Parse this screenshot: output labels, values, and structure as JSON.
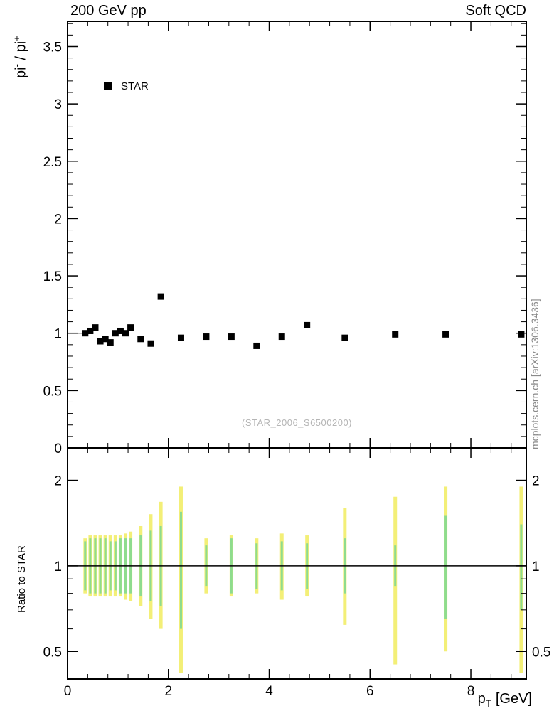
{
  "titles": {
    "top_left": "200 GeV pp",
    "top_right": "Soft QCD",
    "watermark": "(STAR_2006_S6500200)",
    "side_note": "mcplots.cern.ch [arXiv:1306.3436]"
  },
  "legend": {
    "label": "STAR",
    "marker": "filled-square",
    "marker_color": "#000000"
  },
  "axes": {
    "x": {
      "label_main": "p",
      "label_sub": "T",
      "label_rest": " [GeV]",
      "min": 0,
      "max": 9.1,
      "major_ticks": [
        0,
        2,
        4,
        6,
        8
      ],
      "major_labels": [
        "0",
        "2",
        "4",
        "6",
        "8"
      ],
      "minor_step": 0.4
    },
    "y_top": {
      "label_p1": "pi",
      "label_sup1": "-",
      "label_p2": " / pi",
      "label_sup2": "+",
      "min": 0,
      "max": 3.72,
      "major_ticks": [
        0,
        0.5,
        1,
        1.5,
        2,
        2.5,
        3,
        3.5
      ],
      "major_labels": [
        "0",
        "0.5",
        "1",
        "1.5",
        "2",
        "2.5",
        "3",
        "3.5"
      ],
      "minor_step": 0.1
    },
    "y_bottom": {
      "label": "Ratio to STAR",
      "scale": "log",
      "min": 0.4,
      "max": 2.6,
      "major_ticks": [
        0.5,
        1,
        2
      ],
      "major_labels": [
        "0.5",
        "1",
        "2"
      ],
      "minor_ticks": [
        0.4,
        0.6,
        0.7,
        0.8,
        0.9
      ]
    }
  },
  "colors": {
    "marker": "#000000",
    "frame": "#000000",
    "yellow_band": "#f3ef77",
    "green_band": "#8edc8e",
    "gray_text": "#8a8a8a",
    "watermark_text": "#b5b5b5"
  },
  "chart_data": {
    "type": "scatter",
    "title": "200 GeV pp — Soft QCD",
    "xlabel": "p_T [GeV]",
    "xlim": [
      0,
      9.1
    ],
    "top_panel": {
      "ylabel": "pi- / pi+",
      "ylim": [
        0,
        3.72
      ],
      "series": [
        {
          "name": "STAR",
          "marker": "filled-square",
          "color": "#000000",
          "x": [
            0.35,
            0.45,
            0.55,
            0.65,
            0.75,
            0.85,
            0.95,
            1.05,
            1.15,
            1.25,
            1.45,
            1.65,
            1.85,
            2.25,
            2.75,
            3.25,
            3.75,
            4.25,
            4.75,
            5.5,
            6.5,
            7.5,
            9.0
          ],
          "y": [
            1.0,
            1.02,
            1.05,
            0.93,
            0.95,
            0.92,
            1.0,
            1.02,
            1.0,
            1.05,
            0.95,
            0.91,
            1.32,
            0.96,
            0.97,
            0.97,
            0.89,
            0.97,
            1.07,
            0.96,
            0.99,
            0.99,
            0.99
          ]
        }
      ]
    },
    "bottom_panel": {
      "ylabel": "Ratio to STAR",
      "yscale": "log",
      "ylim": [
        0.4,
        2.6
      ],
      "reference_line": 1,
      "bands": [
        {
          "name": "yellow",
          "color": "#f3ef77",
          "x": [
            0.35,
            0.45,
            0.55,
            0.65,
            0.75,
            0.85,
            0.95,
            1.05,
            1.15,
            1.25,
            1.45,
            1.65,
            1.85,
            2.25,
            2.75,
            3.25,
            3.75,
            4.25,
            4.75,
            5.5,
            6.5,
            7.5,
            9.0
          ],
          "lo": [
            0.8,
            0.78,
            0.78,
            0.78,
            0.78,
            0.78,
            0.78,
            0.78,
            0.76,
            0.75,
            0.72,
            0.65,
            0.6,
            0.42,
            0.8,
            0.78,
            0.8,
            0.76,
            0.78,
            0.62,
            0.45,
            0.5,
            0.42
          ],
          "hi": [
            1.25,
            1.28,
            1.28,
            1.28,
            1.28,
            1.28,
            1.28,
            1.28,
            1.3,
            1.32,
            1.38,
            1.52,
            1.68,
            1.9,
            1.25,
            1.28,
            1.25,
            1.3,
            1.28,
            1.6,
            1.75,
            1.9,
            1.9
          ]
        },
        {
          "name": "green",
          "color": "#8edc8e",
          "x": [
            0.35,
            0.45,
            0.55,
            0.65,
            0.75,
            0.85,
            0.95,
            1.05,
            1.15,
            1.25,
            1.45,
            1.65,
            1.85,
            2.25,
            2.75,
            3.25,
            3.75,
            4.25,
            4.75,
            5.5,
            6.5,
            7.5,
            9.0
          ],
          "lo": [
            0.82,
            0.8,
            0.8,
            0.8,
            0.8,
            0.82,
            0.82,
            0.8,
            0.8,
            0.8,
            0.78,
            0.75,
            0.72,
            0.6,
            0.85,
            0.8,
            0.83,
            0.82,
            0.83,
            0.8,
            0.85,
            0.65,
            0.7
          ],
          "hi": [
            1.22,
            1.25,
            1.25,
            1.25,
            1.25,
            1.22,
            1.22,
            1.25,
            1.25,
            1.25,
            1.28,
            1.33,
            1.38,
            1.55,
            1.18,
            1.25,
            1.2,
            1.22,
            1.2,
            1.25,
            1.18,
            1.5,
            1.4
          ]
        }
      ]
    }
  }
}
